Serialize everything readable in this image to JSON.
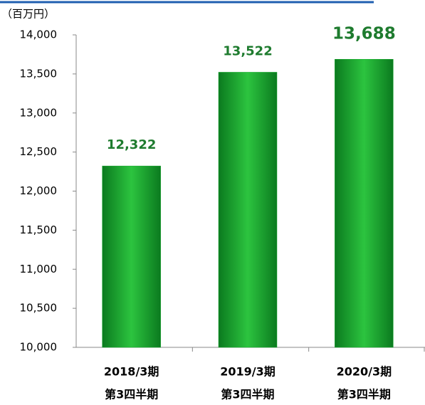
{
  "chart_data": {
    "type": "bar",
    "unit_label": "（百万円）",
    "categories": [
      "2018/3期",
      "2019/3期",
      "2020/3期"
    ],
    "category_sublabels": [
      "第3四半期",
      "第3四半期",
      "第3四半期"
    ],
    "values": [
      12322,
      13522,
      13688
    ],
    "value_labels": [
      "12,322",
      "13,522",
      "13,688"
    ],
    "color": "#14a82a",
    "ylim": [
      10000,
      14000
    ],
    "yticks": [
      {
        "value": 10000,
        "label": "10,000"
      },
      {
        "value": 10500,
        "label": "10,500"
      },
      {
        "value": 11000,
        "label": "11,000"
      },
      {
        "value": 11500,
        "label": "11,500"
      },
      {
        "value": 12000,
        "label": "12,000"
      },
      {
        "value": 12500,
        "label": "12,500"
      },
      {
        "value": 13000,
        "label": "13,000"
      },
      {
        "value": 13500,
        "label": "13,500"
      },
      {
        "value": 14000,
        "label": "14,000"
      }
    ],
    "grid": false
  }
}
